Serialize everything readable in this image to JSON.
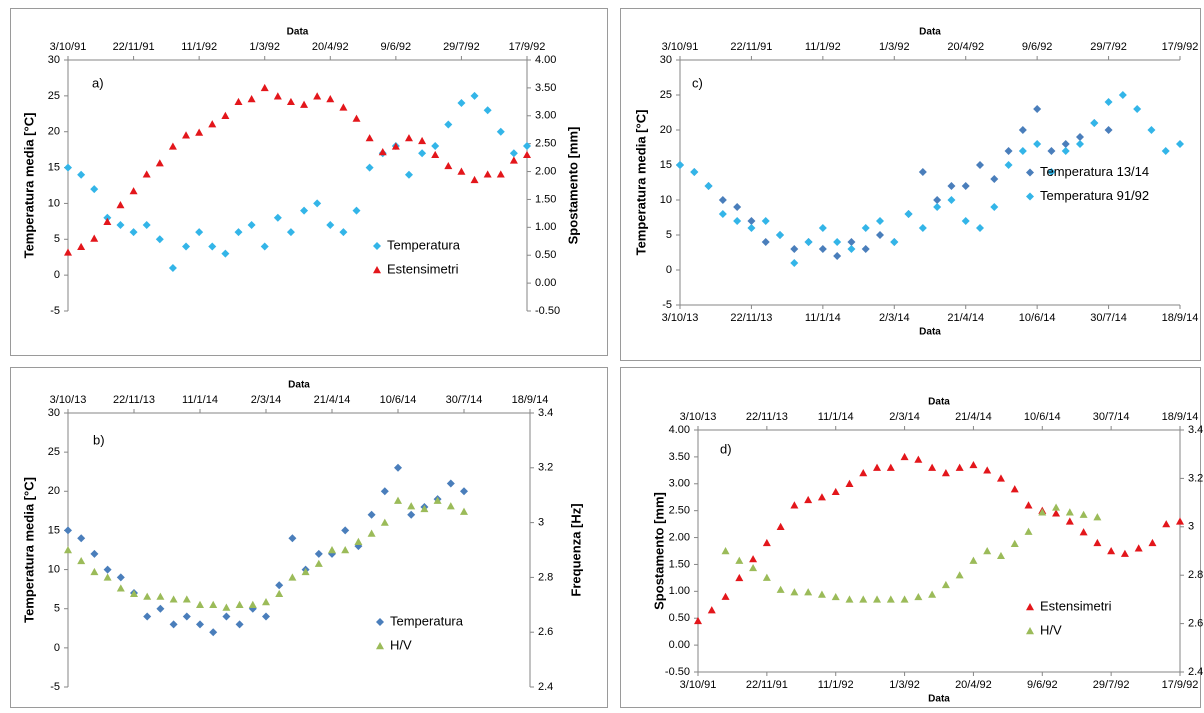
{
  "chart_data": [
    {
      "type": "scatter",
      "annotation": "a)",
      "x2label": "Data",
      "ylabel": "Temperatura media [°C]",
      "y2label": "Spostamento [mm]",
      "xlim": [
        0,
        350
      ],
      "x2ticks": [
        {
          "value": 0,
          "label": "3/10/91"
        },
        {
          "value": 50,
          "label": "22/11/91"
        },
        {
          "value": 100,
          "label": "11/1/92"
        },
        {
          "value": 150,
          "label": "1/3/92"
        },
        {
          "value": 200,
          "label": "20/4/92"
        },
        {
          "value": 250,
          "label": "9/6/92"
        },
        {
          "value": 300,
          "label": "29/7/92"
        },
        {
          "value": 350,
          "label": "17/9/92"
        }
      ],
      "ylim": [
        -5,
        30
      ],
      "yticks": [
        -5,
        0,
        5,
        10,
        15,
        20,
        25,
        30
      ],
      "y2lim": [
        -0.5,
        4
      ],
      "y2ticks": [
        {
          "value": -0.5,
          "label": "-0.50"
        },
        {
          "value": 0,
          "label": "0.00"
        },
        {
          "value": 0.5,
          "label": "0.50"
        },
        {
          "value": 1,
          "label": "1.00"
        },
        {
          "value": 1.5,
          "label": "1.50"
        },
        {
          "value": 2,
          "label": "2.00"
        },
        {
          "value": 2.5,
          "label": "2.50"
        },
        {
          "value": 3,
          "label": "3.00"
        },
        {
          "value": 3.5,
          "label": "3.50"
        },
        {
          "value": 4,
          "label": "4.00"
        }
      ],
      "legend_position": "lower right",
      "series": [
        {
          "name": "Temperatura",
          "color": "#33b5e8",
          "marker": "diamond",
          "x": [
            0,
            10,
            20,
            30,
            40,
            50,
            60,
            70,
            80,
            90,
            100,
            110,
            120,
            130,
            140,
            150,
            160,
            170,
            180,
            190,
            200,
            210,
            220,
            230,
            240,
            250,
            260,
            270,
            280,
            290,
            300,
            310,
            320,
            330,
            340,
            350
          ],
          "values": [
            15,
            14,
            12,
            8,
            7,
            6,
            7,
            5,
            1,
            4,
            6,
            4,
            3,
            6,
            7,
            4,
            8,
            6,
            9,
            10,
            7,
            6,
            9,
            15,
            17,
            18,
            14,
            17,
            18,
            21,
            24,
            25,
            23,
            20,
            17,
            18
          ]
        },
        {
          "name": "Estensimetri",
          "color": "#e3161b",
          "marker": "triangle",
          "axis": "y2",
          "x": [
            0,
            10,
            20,
            30,
            40,
            50,
            60,
            70,
            80,
            90,
            100,
            110,
            120,
            130,
            140,
            150,
            160,
            170,
            180,
            190,
            200,
            210,
            220,
            230,
            240,
            250,
            260,
            270,
            280,
            290,
            300,
            310,
            320,
            330,
            340,
            350
          ],
          "values": [
            0.55,
            0.65,
            0.8,
            1.1,
            1.4,
            1.65,
            1.95,
            2.15,
            2.45,
            2.65,
            2.7,
            2.85,
            3.0,
            3.25,
            3.3,
            3.5,
            3.35,
            3.25,
            3.2,
            3.35,
            3.3,
            3.15,
            2.95,
            2.6,
            2.35,
            2.45,
            2.6,
            2.55,
            2.3,
            2.1,
            2.0,
            1.85,
            1.95,
            1.95,
            2.2,
            2.3
          ]
        }
      ]
    },
    {
      "type": "scatter",
      "annotation": "c)",
      "x2label": "Data",
      "xlabel": "Data",
      "ylabel": "Temperatura media [°C]",
      "xlim": [
        0,
        350
      ],
      "x2ticks": [
        {
          "value": 0,
          "label": "3/10/91"
        },
        {
          "value": 50,
          "label": "22/11/91"
        },
        {
          "value": 100,
          "label": "11/1/92"
        },
        {
          "value": 150,
          "label": "1/3/92"
        },
        {
          "value": 200,
          "label": "20/4/92"
        },
        {
          "value": 250,
          "label": "9/6/92"
        },
        {
          "value": 300,
          "label": "29/7/92"
        },
        {
          "value": 350,
          "label": "17/9/92"
        }
      ],
      "xticks": [
        {
          "value": 0,
          "label": "3/10/13"
        },
        {
          "value": 50,
          "label": "22/11/13"
        },
        {
          "value": 100,
          "label": "11/1/14"
        },
        {
          "value": 150,
          "label": "2/3/14"
        },
        {
          "value": 200,
          "label": "21/4/14"
        },
        {
          "value": 250,
          "label": "10/6/14"
        },
        {
          "value": 300,
          "label": "30/7/14"
        },
        {
          "value": 350,
          "label": "18/9/14"
        }
      ],
      "ylim": [
        -5,
        30
      ],
      "yticks": [
        -5,
        0,
        5,
        10,
        15,
        20,
        25,
        30
      ],
      "legend_position": "center right",
      "series": [
        {
          "name": "Temperatura 13/14",
          "color": "#4a7ebb",
          "marker": "diamond",
          "x": [
            0,
            10,
            20,
            30,
            40,
            50,
            60,
            70,
            80,
            90,
            100,
            110,
            120,
            130,
            140,
            150,
            160,
            170,
            180,
            190,
            200,
            210,
            220,
            230,
            240,
            250,
            260,
            270,
            280,
            290,
            300
          ],
          "values": [
            15,
            14,
            12,
            10,
            9,
            7,
            4,
            5,
            3,
            4,
            3,
            2,
            4,
            3,
            5,
            4,
            8,
            14,
            10,
            12,
            12,
            15,
            13,
            17,
            20,
            23,
            17,
            18,
            19,
            21,
            20
          ]
        },
        {
          "name": "Temperatura 91/92",
          "color": "#33b5e8",
          "marker": "diamond",
          "x": [
            0,
            10,
            20,
            30,
            40,
            50,
            60,
            70,
            80,
            90,
            100,
            110,
            120,
            130,
            140,
            150,
            160,
            170,
            180,
            190,
            200,
            210,
            220,
            230,
            240,
            250,
            260,
            270,
            280,
            290,
            300,
            310,
            320,
            330,
            340,
            350
          ],
          "values": [
            15,
            14,
            12,
            8,
            7,
            6,
            7,
            5,
            1,
            4,
            6,
            4,
            3,
            6,
            7,
            4,
            8,
            6,
            9,
            10,
            7,
            6,
            9,
            15,
            17,
            18,
            14,
            17,
            18,
            21,
            24,
            25,
            23,
            20,
            17,
            18
          ]
        }
      ]
    },
    {
      "type": "scatter",
      "annotation": "b)",
      "x2label": "Data",
      "ylabel": "Temperatura media [°C]",
      "y2label": "Frequenza [Hz]",
      "xlim": [
        0,
        350
      ],
      "x2ticks": [
        {
          "value": 0,
          "label": "3/10/13"
        },
        {
          "value": 50,
          "label": "22/11/13"
        },
        {
          "value": 100,
          "label": "11/1/14"
        },
        {
          "value": 150,
          "label": "2/3/14"
        },
        {
          "value": 200,
          "label": "21/4/14"
        },
        {
          "value": 250,
          "label": "10/6/14"
        },
        {
          "value": 300,
          "label": "30/7/14"
        },
        {
          "value": 350,
          "label": "18/9/14"
        }
      ],
      "ylim": [
        -5,
        30
      ],
      "yticks": [
        -5,
        0,
        5,
        10,
        15,
        20,
        25,
        30
      ],
      "y2lim": [
        2.4,
        3.4
      ],
      "y2ticks": [
        2.4,
        2.6,
        2.8,
        3,
        3.2,
        3.4
      ],
      "legend_position": "lower right",
      "series": [
        {
          "name": "Temperatura",
          "color": "#4a7ebb",
          "marker": "diamond",
          "x": [
            0,
            10,
            20,
            30,
            40,
            50,
            60,
            70,
            80,
            90,
            100,
            110,
            120,
            130,
            140,
            150,
            160,
            170,
            180,
            190,
            200,
            210,
            220,
            230,
            240,
            250,
            260,
            270,
            280,
            290,
            300
          ],
          "values": [
            15,
            14,
            12,
            10,
            9,
            7,
            4,
            5,
            3,
            4,
            3,
            2,
            4,
            3,
            5,
            4,
            8,
            14,
            10,
            12,
            12,
            15,
            13,
            17,
            20,
            23,
            17,
            18,
            19,
            21,
            20
          ]
        },
        {
          "name": "H/V",
          "color": "#9bbb59",
          "marker": "triangle",
          "axis": "y2",
          "x": [
            0,
            10,
            20,
            30,
            40,
            50,
            60,
            70,
            80,
            90,
            100,
            110,
            120,
            130,
            140,
            150,
            160,
            170,
            180,
            190,
            200,
            210,
            220,
            230,
            240,
            250,
            260,
            270,
            280,
            290,
            300
          ],
          "values": [
            2.9,
            2.86,
            2.82,
            2.8,
            2.76,
            2.74,
            2.73,
            2.73,
            2.72,
            2.72,
            2.7,
            2.7,
            2.69,
            2.7,
            2.7,
            2.71,
            2.74,
            2.8,
            2.82,
            2.85,
            2.9,
            2.9,
            2.93,
            2.96,
            3.0,
            3.08,
            3.06,
            3.05,
            3.08,
            3.06,
            3.04
          ]
        }
      ]
    },
    {
      "type": "scatter",
      "annotation": "d)",
      "x2label": "Data",
      "xlabel": "Data",
      "ylabel": "Spostamento [mm]",
      "y2label": "Frequenza [Hz]",
      "xlim": [
        0,
        350
      ],
      "x2ticks": [
        {
          "value": 0,
          "label": "3/10/13"
        },
        {
          "value": 50,
          "label": "22/11/13"
        },
        {
          "value": 100,
          "label": "11/1/14"
        },
        {
          "value": 150,
          "label": "2/3/14"
        },
        {
          "value": 200,
          "label": "21/4/14"
        },
        {
          "value": 250,
          "label": "10/6/14"
        },
        {
          "value": 300,
          "label": "30/7/14"
        },
        {
          "value": 350,
          "label": "18/9/14"
        }
      ],
      "xticks": [
        {
          "value": 0,
          "label": "3/10/91"
        },
        {
          "value": 50,
          "label": "22/11/91"
        },
        {
          "value": 100,
          "label": "11/1/92"
        },
        {
          "value": 150,
          "label": "1/3/92"
        },
        {
          "value": 200,
          "label": "20/4/92"
        },
        {
          "value": 250,
          "label": "9/6/92"
        },
        {
          "value": 300,
          "label": "29/7/92"
        },
        {
          "value": 350,
          "label": "17/9/92"
        }
      ],
      "ylim": [
        -0.5,
        4
      ],
      "yticks": [
        {
          "value": -0.5,
          "label": "-0.50"
        },
        {
          "value": 0,
          "label": "0.00"
        },
        {
          "value": 0.5,
          "label": "0.50"
        },
        {
          "value": 1,
          "label": "1.00"
        },
        {
          "value": 1.5,
          "label": "1.50"
        },
        {
          "value": 2,
          "label": "2.00"
        },
        {
          "value": 2.5,
          "label": "2.50"
        },
        {
          "value": 3,
          "label": "3.00"
        },
        {
          "value": 3.5,
          "label": "3.50"
        },
        {
          "value": 4,
          "label": "4.00"
        }
      ],
      "y2lim": [
        2.4,
        3.4
      ],
      "y2ticks": [
        2.4,
        2.6,
        2.8,
        3,
        3.2,
        3.4
      ],
      "legend_position": "lower right",
      "series": [
        {
          "name": "Estensimetri",
          "color": "#e3161b",
          "marker": "triangle",
          "x": [
            0,
            10,
            20,
            30,
            40,
            50,
            60,
            70,
            80,
            90,
            100,
            110,
            120,
            130,
            140,
            150,
            160,
            170,
            180,
            190,
            200,
            210,
            220,
            230,
            240,
            250,
            260,
            270,
            280,
            290,
            300,
            310,
            320,
            330,
            340,
            350
          ],
          "values": [
            0.45,
            0.65,
            0.9,
            1.25,
            1.6,
            1.9,
            2.2,
            2.6,
            2.7,
            2.75,
            2.85,
            3.0,
            3.2,
            3.3,
            3.3,
            3.5,
            3.45,
            3.3,
            3.2,
            3.3,
            3.35,
            3.25,
            3.1,
            2.9,
            2.6,
            2.5,
            2.45,
            2.3,
            2.1,
            1.9,
            1.75,
            1.7,
            1.8,
            1.9,
            2.25,
            2.3
          ]
        },
        {
          "name": "H/V",
          "color": "#9bbb59",
          "marker": "triangle",
          "axis": "y2",
          "x": [
            20,
            30,
            40,
            50,
            60,
            70,
            80,
            90,
            100,
            110,
            120,
            130,
            140,
            150,
            160,
            170,
            180,
            190,
            200,
            210,
            220,
            230,
            240,
            250,
            260,
            270,
            280,
            290
          ],
          "values": [
            2.9,
            2.86,
            2.83,
            2.79,
            2.74,
            2.73,
            2.73,
            2.72,
            2.71,
            2.7,
            2.7,
            2.7,
            2.7,
            2.7,
            2.71,
            2.72,
            2.76,
            2.8,
            2.86,
            2.9,
            2.88,
            2.93,
            2.98,
            3.06,
            3.08,
            3.06,
            3.05,
            3.04
          ]
        }
      ]
    }
  ]
}
